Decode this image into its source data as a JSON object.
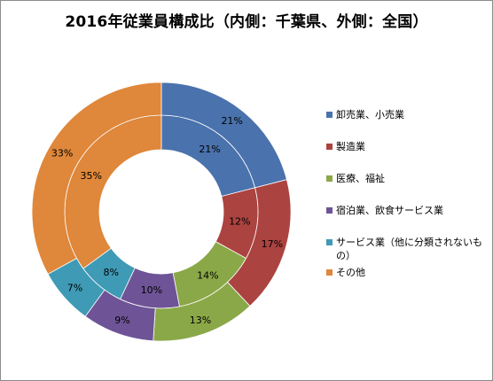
{
  "chart_data": {
    "type": "donut",
    "title": "2016年従業員構成比（内側：千葉県、外側：全国）",
    "categories": [
      "卸売業、小売業",
      "製造業",
      "医療、福祉",
      "宿泊業、飲食サービス業",
      "サービス業（他に分類されないもの）",
      "その他"
    ],
    "colors": [
      "#4a72ad",
      "#ab4340",
      "#8aa848",
      "#6e5496",
      "#3f9ab5",
      "#df873a"
    ],
    "series": [
      {
        "name": "千葉県",
        "ring": "inner",
        "values": [
          21,
          12,
          14,
          10,
          8,
          35
        ],
        "labels": [
          "21%",
          "12%",
          "14%",
          "10%",
          "8%",
          "35%"
        ]
      },
      {
        "name": "全国",
        "ring": "outer",
        "values": [
          21,
          17,
          13,
          9,
          7,
          33
        ],
        "labels": [
          "21%",
          "17%",
          "13%",
          "9%",
          "7%",
          "33%"
        ]
      }
    ],
    "legend_position": "right"
  }
}
